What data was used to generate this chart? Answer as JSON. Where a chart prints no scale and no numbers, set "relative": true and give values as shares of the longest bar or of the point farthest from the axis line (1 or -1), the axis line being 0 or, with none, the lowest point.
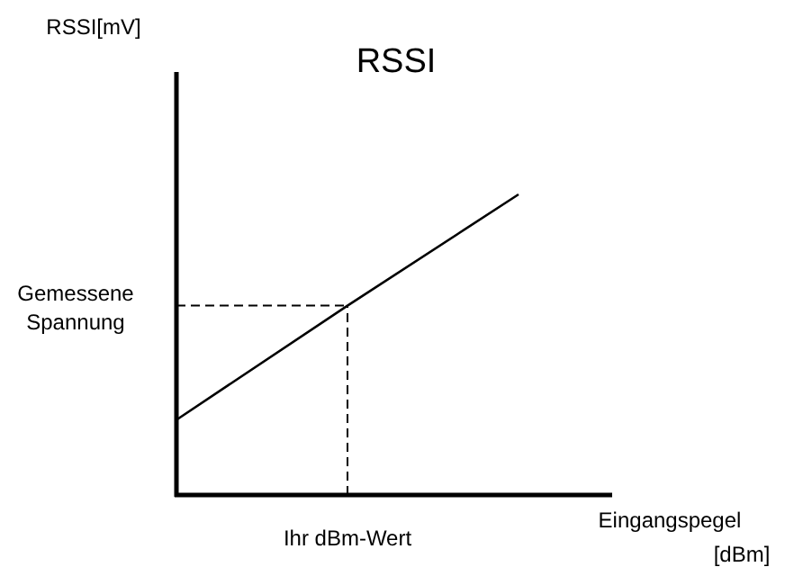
{
  "chart_data": {
    "type": "line",
    "title": "RSSI",
    "relative": true,
    "categories": [
      null,
      null,
      null
    ],
    "series": [
      {
        "color": "#000000",
        "values": [
          0.25,
          0.63,
          1
        ]
      }
    ],
    "ref_lines": [
      {
        "axis": "y",
        "value": 0.63,
        "label": "Gemessene Spannung",
        "line_style": "dashed",
        "color": "#000000"
      }
    ],
    "annotations": [
      "RSSI[mV]",
      "Eingangspegel\n[dBm]",
      "Ihr dBm-Wert"
    ],
    "marker": "none",
    "line_style": "solid"
  }
}
